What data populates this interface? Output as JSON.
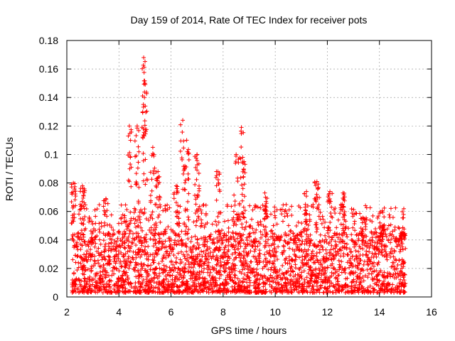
{
  "chart_data": {
    "type": "scatter",
    "title": "Day 159 of 2014, Rate Of TEC Index for receiver pots",
    "xlabel": "GPS time / hours",
    "ylabel": "ROTI / TECUs",
    "xlim": [
      2,
      16
    ],
    "ylim": [
      0,
      0.18
    ],
    "x_ticks": [
      2,
      4,
      6,
      8,
      10,
      12,
      14,
      16
    ],
    "y_ticks": [
      0,
      0.02,
      0.04,
      0.06,
      0.08,
      0.1,
      0.12,
      0.14,
      0.16,
      0.18
    ],
    "x_tick_labels": [
      "2",
      "4",
      "6",
      "8",
      "10",
      "12",
      "14",
      "16"
    ],
    "y_tick_labels": [
      "0",
      "0.02",
      "0.04",
      "0.06",
      "0.08",
      "0.1",
      "0.12",
      "0.14",
      "0.16",
      "0.18"
    ],
    "grid": true,
    "marker": "+",
    "color": "#ff0000",
    "data_range_x": [
      2.2,
      15.0
    ],
    "dense_band": [
      0.003,
      0.045
    ],
    "peaks": [
      {
        "x": 2.25,
        "y": 0.08
      },
      {
        "x": 2.6,
        "y": 0.078
      },
      {
        "x": 3.5,
        "y": 0.069
      },
      {
        "x": 4.4,
        "y": 0.12
      },
      {
        "x": 4.7,
        "y": 0.12
      },
      {
        "x": 4.95,
        "y": 0.168
      },
      {
        "x": 5.0,
        "y": 0.15
      },
      {
        "x": 5.3,
        "y": 0.105
      },
      {
        "x": 5.5,
        "y": 0.088
      },
      {
        "x": 6.2,
        "y": 0.078
      },
      {
        "x": 6.45,
        "y": 0.124
      },
      {
        "x": 6.6,
        "y": 0.11
      },
      {
        "x": 7.0,
        "y": 0.1
      },
      {
        "x": 7.8,
        "y": 0.088
      },
      {
        "x": 8.5,
        "y": 0.1
      },
      {
        "x": 8.7,
        "y": 0.119
      },
      {
        "x": 8.8,
        "y": 0.095
      },
      {
        "x": 9.6,
        "y": 0.073
      },
      {
        "x": 11.2,
        "y": 0.074
      },
      {
        "x": 11.6,
        "y": 0.081
      },
      {
        "x": 12.1,
        "y": 0.074
      },
      {
        "x": 12.6,
        "y": 0.073
      },
      {
        "x": 13.4,
        "y": 0.055
      },
      {
        "x": 14.1,
        "y": 0.05
      },
      {
        "x": 14.9,
        "y": 0.045
      }
    ]
  }
}
